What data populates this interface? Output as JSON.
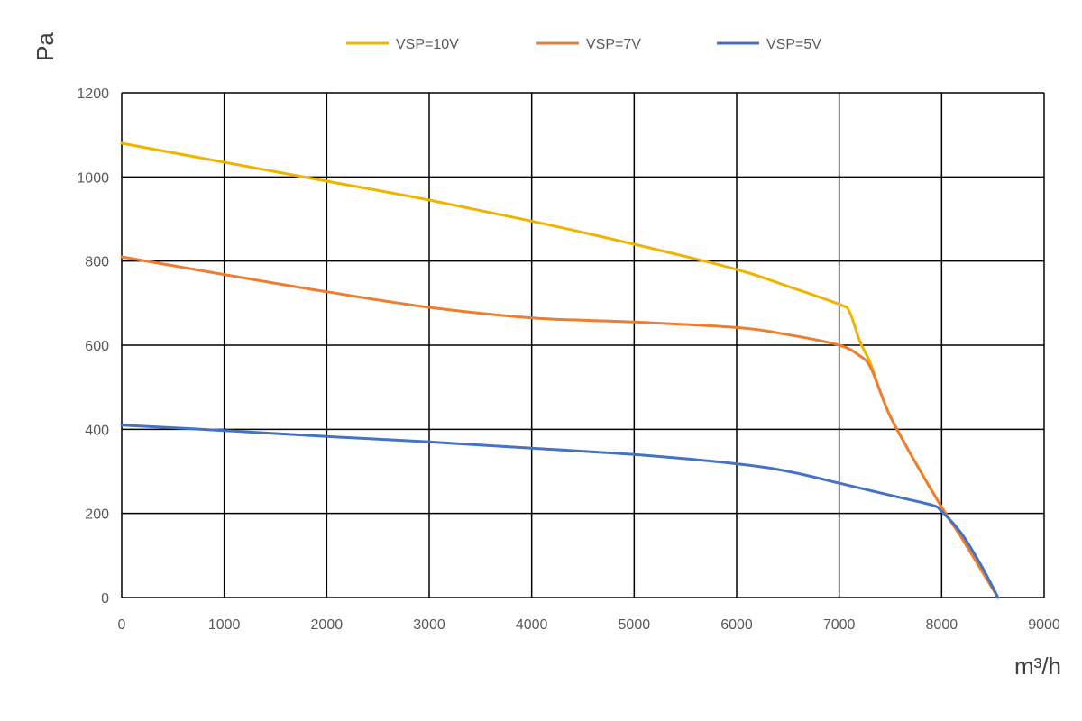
{
  "chart_data": {
    "type": "line",
    "title": "",
    "xlabel": "m³/h",
    "ylabel": "Pa",
    "xlim": [
      0,
      9000
    ],
    "ylim": [
      0,
      1200
    ],
    "x_ticks": [
      "0",
      "1000",
      "2000",
      "3000",
      "4000",
      "5000",
      "6000",
      "7000",
      "8000",
      "9000"
    ],
    "y_ticks": [
      "0",
      "200",
      "400",
      "600",
      "800",
      "1000",
      "1200"
    ],
    "grid": true,
    "legend_position": "top",
    "series": [
      {
        "name": "VSP=10V",
        "color": "#F0B400",
        "points": [
          [
            0,
            1080
          ],
          [
            1000,
            1035
          ],
          [
            2000,
            990
          ],
          [
            3000,
            945
          ],
          [
            4000,
            895
          ],
          [
            5000,
            840
          ],
          [
            6000,
            780
          ],
          [
            6500,
            740
          ],
          [
            7000,
            697
          ],
          [
            7100,
            680
          ],
          [
            7200,
            610
          ],
          [
            7300,
            560
          ],
          [
            7400,
            490
          ],
          [
            7500,
            430
          ],
          [
            7700,
            340
          ],
          [
            8000,
            215
          ],
          [
            8200,
            140
          ],
          [
            8400,
            60
          ],
          [
            8550,
            0
          ]
        ]
      },
      {
        "name": "VSP=7V",
        "color": "#ED7D31",
        "points": [
          [
            0,
            810
          ],
          [
            1000,
            768
          ],
          [
            2000,
            727
          ],
          [
            3000,
            690
          ],
          [
            4000,
            665
          ],
          [
            5000,
            655
          ],
          [
            6000,
            642
          ],
          [
            6500,
            625
          ],
          [
            7000,
            600
          ],
          [
            7200,
            575
          ],
          [
            7300,
            550
          ],
          [
            7400,
            490
          ],
          [
            7500,
            430
          ],
          [
            7700,
            340
          ],
          [
            8000,
            215
          ],
          [
            8200,
            140
          ],
          [
            8400,
            60
          ],
          [
            8550,
            0
          ]
        ]
      },
      {
        "name": "VSP=5V",
        "color": "#4472C4",
        "points": [
          [
            0,
            410
          ],
          [
            1000,
            397
          ],
          [
            2000,
            383
          ],
          [
            3000,
            370
          ],
          [
            4000,
            355
          ],
          [
            5000,
            340
          ],
          [
            6000,
            318
          ],
          [
            6500,
            300
          ],
          [
            7000,
            272
          ],
          [
            7500,
            243
          ],
          [
            7900,
            220
          ],
          [
            8000,
            205
          ],
          [
            8200,
            150
          ],
          [
            8400,
            70
          ],
          [
            8550,
            0
          ]
        ]
      }
    ]
  }
}
